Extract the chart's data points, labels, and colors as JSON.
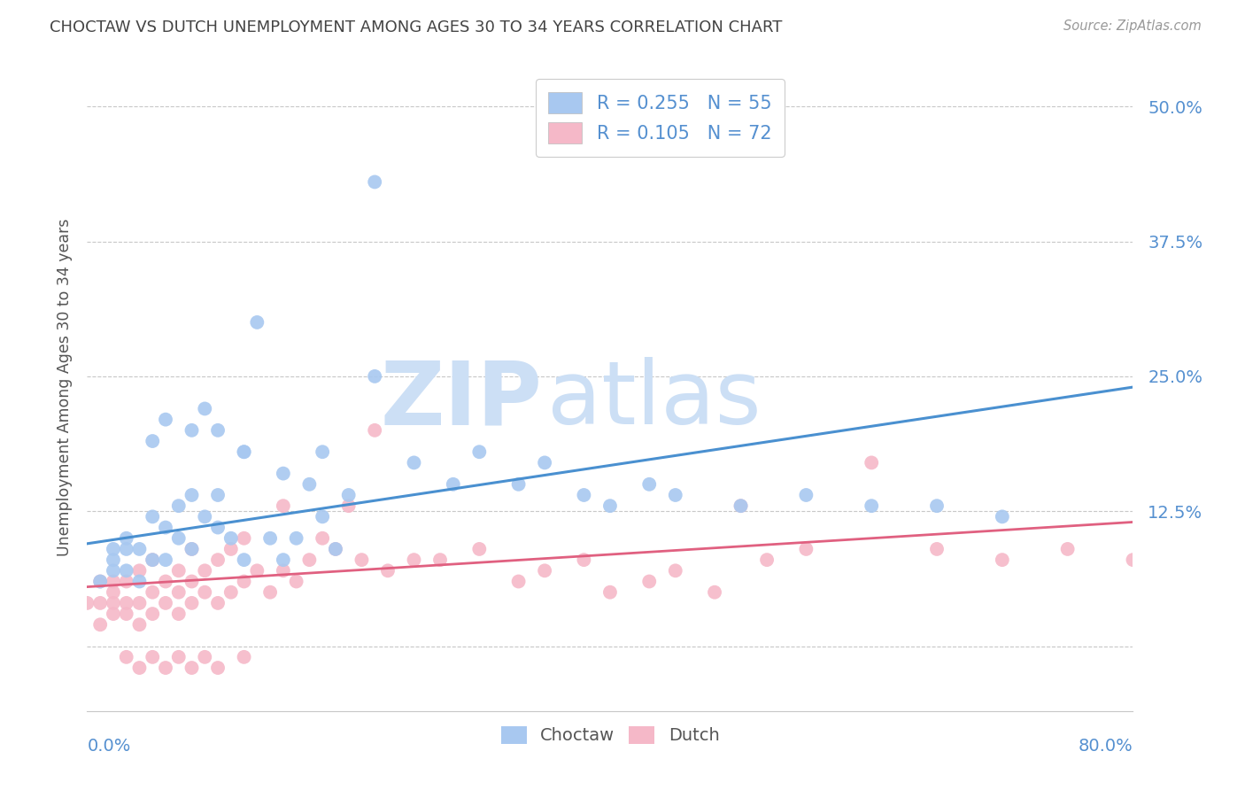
{
  "title": "CHOCTAW VS DUTCH UNEMPLOYMENT AMONG AGES 30 TO 34 YEARS CORRELATION CHART",
  "source": "Source: ZipAtlas.com",
  "ylabel": "Unemployment Among Ages 30 to 34 years",
  "xlim": [
    0.0,
    0.8
  ],
  "ylim": [
    -0.06,
    0.54
  ],
  "yticks": [
    0.0,
    0.125,
    0.25,
    0.375,
    0.5
  ],
  "ytick_labels": [
    "",
    "12.5%",
    "25.0%",
    "37.5%",
    "50.0%"
  ],
  "choctaw_R": 0.255,
  "choctaw_N": 55,
  "dutch_R": 0.105,
  "dutch_N": 72,
  "choctaw_color": "#a8c8f0",
  "dutch_color": "#f5b8c8",
  "choctaw_line_color": "#4a90d0",
  "dutch_line_color": "#e06080",
  "background_color": "#ffffff",
  "grid_color": "#c8c8c8",
  "title_color": "#444444",
  "axis_label_color": "#5590d0",
  "watermark_zip_color": "#ccdff5",
  "watermark_atlas_color": "#ccdff5",
  "choctaw_line_x0": 0.0,
  "choctaw_line_y0": 0.095,
  "choctaw_line_x1": 0.8,
  "choctaw_line_y1": 0.24,
  "dutch_line_x0": 0.0,
  "dutch_line_y0": 0.055,
  "dutch_line_x1": 0.8,
  "dutch_line_y1": 0.115,
  "choctaw_x": [
    0.01,
    0.02,
    0.02,
    0.02,
    0.03,
    0.03,
    0.03,
    0.04,
    0.04,
    0.05,
    0.05,
    0.05,
    0.06,
    0.06,
    0.07,
    0.07,
    0.08,
    0.08,
    0.09,
    0.09,
    0.1,
    0.1,
    0.11,
    0.12,
    0.12,
    0.13,
    0.14,
    0.15,
    0.16,
    0.17,
    0.18,
    0.19,
    0.2,
    0.22,
    0.25,
    0.28,
    0.3,
    0.33,
    0.35,
    0.38,
    0.4,
    0.43,
    0.45,
    0.5,
    0.55,
    0.6,
    0.65,
    0.7,
    0.06,
    0.08,
    0.1,
    0.12,
    0.15,
    0.18,
    0.22
  ],
  "choctaw_y": [
    0.06,
    0.07,
    0.08,
    0.09,
    0.07,
    0.09,
    0.1,
    0.06,
    0.09,
    0.08,
    0.12,
    0.19,
    0.08,
    0.11,
    0.1,
    0.13,
    0.09,
    0.14,
    0.12,
    0.22,
    0.11,
    0.14,
    0.1,
    0.08,
    0.18,
    0.3,
    0.1,
    0.08,
    0.1,
    0.15,
    0.12,
    0.09,
    0.14,
    0.43,
    0.17,
    0.15,
    0.18,
    0.15,
    0.17,
    0.14,
    0.13,
    0.15,
    0.14,
    0.13,
    0.14,
    0.13,
    0.13,
    0.12,
    0.21,
    0.2,
    0.2,
    0.18,
    0.16,
    0.18,
    0.25
  ],
  "dutch_x": [
    0.0,
    0.01,
    0.01,
    0.01,
    0.02,
    0.02,
    0.02,
    0.02,
    0.03,
    0.03,
    0.03,
    0.04,
    0.04,
    0.04,
    0.05,
    0.05,
    0.05,
    0.06,
    0.06,
    0.07,
    0.07,
    0.07,
    0.08,
    0.08,
    0.08,
    0.09,
    0.09,
    0.1,
    0.1,
    0.11,
    0.11,
    0.12,
    0.12,
    0.13,
    0.14,
    0.15,
    0.15,
    0.16,
    0.17,
    0.18,
    0.19,
    0.2,
    0.21,
    0.22,
    0.23,
    0.25,
    0.27,
    0.3,
    0.33,
    0.35,
    0.38,
    0.4,
    0.43,
    0.45,
    0.48,
    0.5,
    0.52,
    0.55,
    0.6,
    0.65,
    0.7,
    0.75,
    0.8,
    0.03,
    0.04,
    0.05,
    0.06,
    0.07,
    0.08,
    0.09,
    0.1,
    0.12
  ],
  "dutch_y": [
    0.04,
    0.02,
    0.04,
    0.06,
    0.03,
    0.04,
    0.05,
    0.06,
    0.03,
    0.04,
    0.06,
    0.02,
    0.04,
    0.07,
    0.03,
    0.05,
    0.08,
    0.04,
    0.06,
    0.03,
    0.05,
    0.07,
    0.04,
    0.06,
    0.09,
    0.05,
    0.07,
    0.04,
    0.08,
    0.05,
    0.09,
    0.06,
    0.1,
    0.07,
    0.05,
    0.07,
    0.13,
    0.06,
    0.08,
    0.1,
    0.09,
    0.13,
    0.08,
    0.2,
    0.07,
    0.08,
    0.08,
    0.09,
    0.06,
    0.07,
    0.08,
    0.05,
    0.06,
    0.07,
    0.05,
    0.13,
    0.08,
    0.09,
    0.17,
    0.09,
    0.08,
    0.09,
    0.08,
    -0.01,
    -0.02,
    -0.01,
    -0.02,
    -0.01,
    -0.02,
    -0.01,
    -0.02,
    -0.01
  ]
}
